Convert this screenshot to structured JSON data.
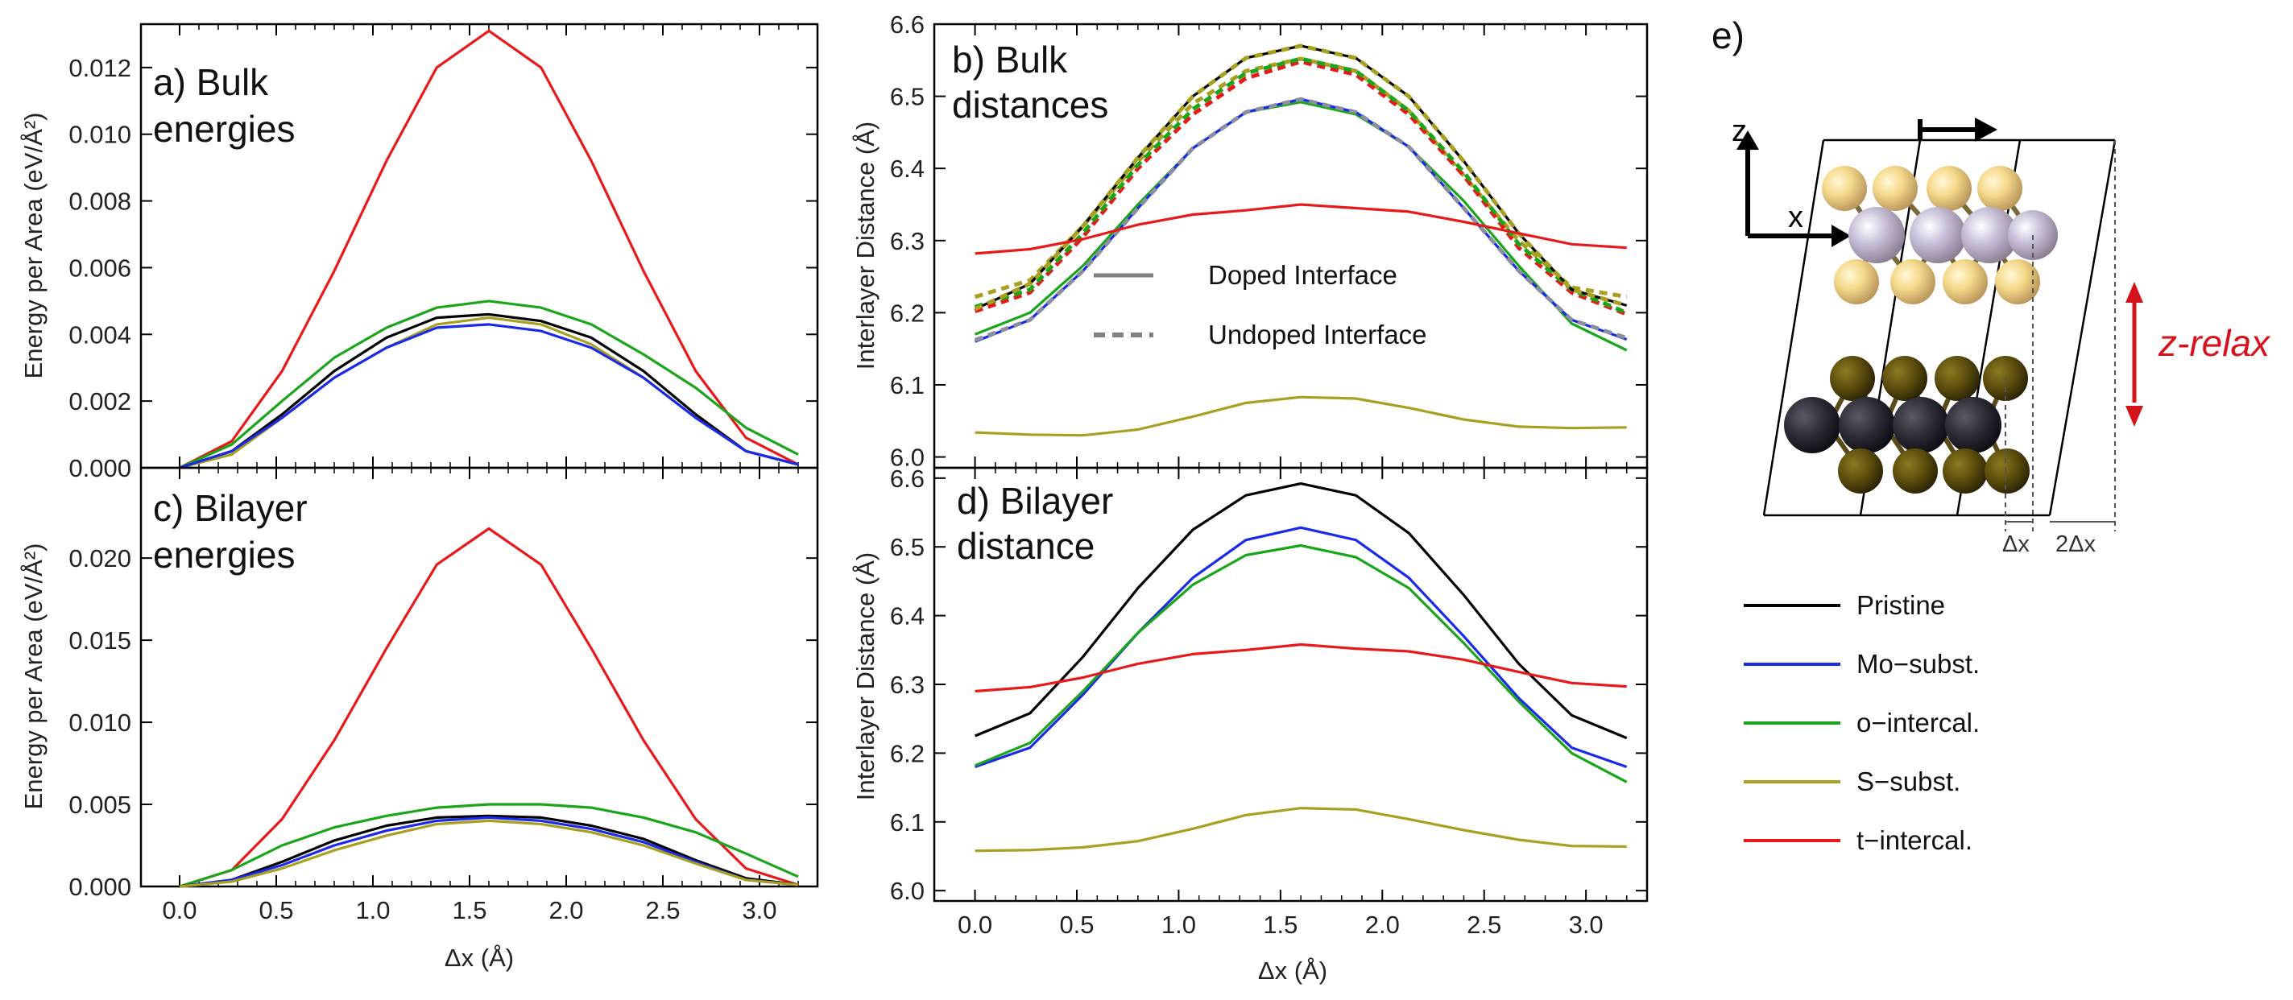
{
  "figure_label_e": "e)",
  "chart_data": [
    {
      "id": "a",
      "type": "line",
      "title_line1": "a) Bulk",
      "title_line2": "energies",
      "xlabel": "",
      "ylabel": "Energy per Area (eV/Å²)",
      "xlim": [
        -0.2,
        3.3
      ],
      "ylim": [
        0.0,
        0.0133
      ],
      "xticks": [
        "",
        "",
        "",
        "",
        "",
        "",
        ""
      ],
      "yticks": [
        "0.000",
        "0.002",
        "0.004",
        "0.006",
        "0.008",
        "0.010",
        "0.012"
      ],
      "ytick_values": [
        0.0,
        0.002,
        0.004,
        0.006,
        0.008,
        0.01,
        0.012
      ],
      "x": [
        0.0,
        0.27,
        0.53,
        0.8,
        1.07,
        1.33,
        1.6,
        1.87,
        2.13,
        2.4,
        2.67,
        2.93,
        3.2
      ],
      "series": [
        {
          "name": "t-intercal.",
          "color": "#e8191a",
          "dash": false,
          "values": [
            0.0,
            0.0008,
            0.0029,
            0.0059,
            0.0092,
            0.012,
            0.0131,
            0.012,
            0.0092,
            0.0059,
            0.0029,
            0.0009,
            0.0001
          ]
        },
        {
          "name": "o-intercal.",
          "color": "#1aa51a",
          "dash": false,
          "values": [
            0.0,
            0.0007,
            0.002,
            0.0033,
            0.0042,
            0.0048,
            0.005,
            0.0048,
            0.0043,
            0.0034,
            0.0024,
            0.0012,
            0.0004
          ]
        },
        {
          "name": "Pristine",
          "color": "#000000",
          "dash": false,
          "values": [
            0.0,
            0.0005,
            0.0016,
            0.0029,
            0.0039,
            0.0045,
            0.0046,
            0.0044,
            0.0039,
            0.0029,
            0.0016,
            0.0005,
            0.0001
          ]
        },
        {
          "name": "S-subst.",
          "color": "#a8a020",
          "dash": false,
          "values": [
            0.0,
            0.0004,
            0.0015,
            0.0027,
            0.0036,
            0.0043,
            0.0045,
            0.0043,
            0.0037,
            0.0027,
            0.0015,
            0.0005,
            0.0001
          ]
        },
        {
          "name": "Mo-subst.",
          "color": "#1a2ae8",
          "dash": false,
          "values": [
            0.0,
            0.0005,
            0.0015,
            0.0027,
            0.0036,
            0.0042,
            0.0043,
            0.0041,
            0.0036,
            0.0027,
            0.0015,
            0.0005,
            0.0001
          ]
        }
      ]
    },
    {
      "id": "c",
      "type": "line",
      "title_line1": "c) Bilayer",
      "title_line2": "energies",
      "xlabel": "Δx (Å)",
      "ylabel": "Energy per Area (eV/Å²)",
      "xlim": [
        -0.2,
        3.3
      ],
      "ylim": [
        0.0,
        0.0255
      ],
      "xticks": [
        "0.0",
        "0.5",
        "1.0",
        "1.5",
        "2.0",
        "2.5",
        "3.0"
      ],
      "xtick_values": [
        0.0,
        0.5,
        1.0,
        1.5,
        2.0,
        2.5,
        3.0
      ],
      "yticks": [
        "0.000",
        "0.005",
        "0.010",
        "0.015",
        "0.020"
      ],
      "ytick_values": [
        0.0,
        0.005,
        0.01,
        0.015,
        0.02
      ],
      "x": [
        0.0,
        0.27,
        0.53,
        0.8,
        1.07,
        1.33,
        1.6,
        1.87,
        2.13,
        2.4,
        2.67,
        2.93,
        3.2
      ],
      "series": [
        {
          "name": "t-intercal.",
          "color": "#e8191a",
          "dash": false,
          "values": [
            0.0,
            0.001,
            0.0041,
            0.0089,
            0.0145,
            0.0196,
            0.0218,
            0.0196,
            0.0145,
            0.0089,
            0.0041,
            0.0011,
            0.0001
          ]
        },
        {
          "name": "o-intercal.",
          "color": "#1aa51a",
          "dash": false,
          "values": [
            0.0,
            0.001,
            0.0025,
            0.0036,
            0.0043,
            0.0048,
            0.005,
            0.005,
            0.0048,
            0.0042,
            0.0033,
            0.002,
            0.0006
          ]
        },
        {
          "name": "Pristine",
          "color": "#000000",
          "dash": false,
          "values": [
            0.0,
            0.0004,
            0.0015,
            0.0028,
            0.0037,
            0.0042,
            0.0043,
            0.0042,
            0.0037,
            0.0029,
            0.0016,
            0.0005,
            0.0001
          ]
        },
        {
          "name": "Mo-subst.",
          "color": "#1a2ae8",
          "dash": false,
          "values": [
            0.0,
            0.0004,
            0.0013,
            0.0025,
            0.0034,
            0.004,
            0.0042,
            0.004,
            0.0035,
            0.0027,
            0.0015,
            0.0004,
            0.0001
          ]
        },
        {
          "name": "S-subst.",
          "color": "#a8a020",
          "dash": false,
          "values": [
            0.0,
            0.0003,
            0.0011,
            0.0022,
            0.0031,
            0.0038,
            0.004,
            0.0038,
            0.0033,
            0.0025,
            0.0014,
            0.0004,
            0.0001
          ]
        }
      ]
    },
    {
      "id": "b",
      "type": "line",
      "title_line1": "b) Bulk",
      "title_line2": "distances",
      "xlabel": "",
      "ylabel": "Interlayer Distance (Å)",
      "xlim": [
        -0.2,
        3.3
      ],
      "ylim": [
        5.985,
        6.6
      ],
      "xticks": [
        "",
        "",
        "",
        "",
        "",
        "",
        ""
      ],
      "yticks": [
        "6.0",
        "6.1",
        "6.2",
        "6.3",
        "6.4",
        "6.5",
        "6.6"
      ],
      "ytick_values": [
        6.0,
        6.1,
        6.2,
        6.3,
        6.4,
        6.5,
        6.6
      ],
      "legend_doped": "Doped Interface",
      "legend_undoped": "Undoped Interface",
      "x": [
        0.0,
        0.27,
        0.53,
        0.8,
        1.07,
        1.33,
        1.6,
        1.87,
        2.13,
        2.4,
        2.67,
        2.93,
        3.2
      ],
      "series": [
        {
          "name": "S-subst. undoped",
          "color": "#a8a020",
          "dash": true,
          "values": [
            6.222,
            6.245,
            6.32,
            6.41,
            6.49,
            6.535,
            6.552,
            6.535,
            6.48,
            6.39,
            6.3,
            6.235,
            6.222
          ]
        },
        {
          "name": "t-intercal. undoped",
          "color": "#e8191a",
          "dash": true,
          "values": [
            6.202,
            6.228,
            6.305,
            6.4,
            6.475,
            6.525,
            6.548,
            6.53,
            6.475,
            6.39,
            6.29,
            6.228,
            6.198
          ]
        },
        {
          "name": "o-intercal. undoped",
          "color": "#1aa51a",
          "dash": true,
          "values": [
            6.208,
            6.232,
            6.31,
            6.405,
            6.482,
            6.532,
            6.552,
            6.535,
            6.48,
            6.395,
            6.295,
            6.232,
            6.2
          ]
        },
        {
          "name": "Pristine",
          "color": "#000000",
          "dash": false,
          "values": [
            6.205,
            6.24,
            6.32,
            6.415,
            6.5,
            6.553,
            6.57,
            6.553,
            6.5,
            6.41,
            6.31,
            6.232,
            6.21
          ]
        },
        {
          "name": "Pristine dashed",
          "color": "#a8a020",
          "dash": true,
          "values": [
            6.205,
            6.24,
            6.32,
            6.415,
            6.5,
            6.553,
            6.57,
            6.553,
            6.5,
            6.41,
            6.31,
            6.232,
            6.21
          ]
        },
        {
          "name": "o-intercal.",
          "color": "#1aa51a",
          "dash": false,
          "values": [
            6.17,
            6.2,
            6.265,
            6.35,
            6.428,
            6.478,
            6.492,
            6.475,
            6.43,
            6.355,
            6.265,
            6.185,
            6.148
          ]
        },
        {
          "name": "Mo-subst.",
          "color": "#1a2ae8",
          "dash": false,
          "values": [
            6.16,
            6.19,
            6.258,
            6.345,
            6.428,
            6.478,
            6.496,
            6.478,
            6.43,
            6.345,
            6.258,
            6.19,
            6.163
          ]
        },
        {
          "name": "Mo-subst. undoped",
          "color": "#8a90a0",
          "dash": true,
          "values": [
            6.162,
            6.19,
            6.258,
            6.345,
            6.428,
            6.478,
            6.496,
            6.478,
            6.43,
            6.345,
            6.258,
            6.19,
            6.165
          ]
        },
        {
          "name": "t-intercal.",
          "color": "#e8191a",
          "dash": false,
          "values": [
            6.282,
            6.288,
            6.302,
            6.322,
            6.336,
            6.342,
            6.35,
            6.345,
            6.34,
            6.326,
            6.31,
            6.295,
            6.29
          ]
        },
        {
          "name": "S-subst.",
          "color": "#a8a020",
          "dash": false,
          "values": [
            6.034,
            6.031,
            6.03,
            6.038,
            6.056,
            6.075,
            6.083,
            6.081,
            6.068,
            6.052,
            6.042,
            6.04,
            6.041
          ]
        }
      ]
    },
    {
      "id": "d",
      "type": "line",
      "title_line1": "d) Bilayer",
      "title_line2": "distance",
      "xlabel": "Δx (Å)",
      "ylabel": "Interlayer Distance (Å)",
      "xlim": [
        -0.2,
        3.3
      ],
      "ylim": [
        5.985,
        6.615
      ],
      "xticks": [
        "0.0",
        "0.5",
        "1.0",
        "1.5",
        "2.0",
        "2.5",
        "3.0"
      ],
      "xtick_values": [
        0.0,
        0.5,
        1.0,
        1.5,
        2.0,
        2.5,
        3.0
      ],
      "yticks": [
        "6.0",
        "6.1",
        "6.2",
        "6.3",
        "6.4",
        "6.5",
        "6.6"
      ],
      "ytick_values": [
        6.0,
        6.1,
        6.2,
        6.3,
        6.4,
        6.5,
        6.6
      ],
      "x": [
        0.0,
        0.27,
        0.53,
        0.8,
        1.07,
        1.33,
        1.6,
        1.87,
        2.13,
        2.4,
        2.67,
        2.93,
        3.2
      ],
      "series": [
        {
          "name": "Pristine",
          "color": "#000000",
          "dash": false,
          "values": [
            6.225,
            6.258,
            6.34,
            6.44,
            6.525,
            6.575,
            6.592,
            6.575,
            6.52,
            6.43,
            6.33,
            6.255,
            6.222
          ]
        },
        {
          "name": "Mo-subst.",
          "color": "#1a2ae8",
          "dash": false,
          "values": [
            6.18,
            6.208,
            6.285,
            6.375,
            6.455,
            6.51,
            6.528,
            6.51,
            6.455,
            6.37,
            6.28,
            6.208,
            6.18
          ]
        },
        {
          "name": "o-intercal.",
          "color": "#1aa51a",
          "dash": false,
          "values": [
            6.182,
            6.215,
            6.29,
            6.375,
            6.445,
            6.488,
            6.502,
            6.485,
            6.44,
            6.36,
            6.275,
            6.2,
            6.158
          ]
        },
        {
          "name": "t-intercal.",
          "color": "#e8191a",
          "dash": false,
          "values": [
            6.29,
            6.296,
            6.31,
            6.33,
            6.344,
            6.35,
            6.358,
            6.352,
            6.348,
            6.336,
            6.318,
            6.302,
            6.297
          ]
        },
        {
          "name": "S-subst.",
          "color": "#a8a020",
          "dash": false,
          "values": [
            6.058,
            6.059,
            6.063,
            6.072,
            6.09,
            6.11,
            6.12,
            6.118,
            6.104,
            6.088,
            6.074,
            6.065,
            6.064
          ]
        }
      ]
    }
  ],
  "structure_panel": {
    "axis_z": "z",
    "axis_x": "x",
    "relax_label": "z-relax",
    "dx_label": "Δx",
    "two_dx_label": "2Δx"
  },
  "legend": [
    {
      "label": "Pristine",
      "color": "#000000"
    },
    {
      "label": "Mo−subst.",
      "color": "#1a2ae8"
    },
    {
      "label": "o−intercal.",
      "color": "#1aa51a"
    },
    {
      "label": "S−subst.",
      "color": "#a8a020"
    },
    {
      "label": "t−intercal.",
      "color": "#e8191a"
    }
  ]
}
